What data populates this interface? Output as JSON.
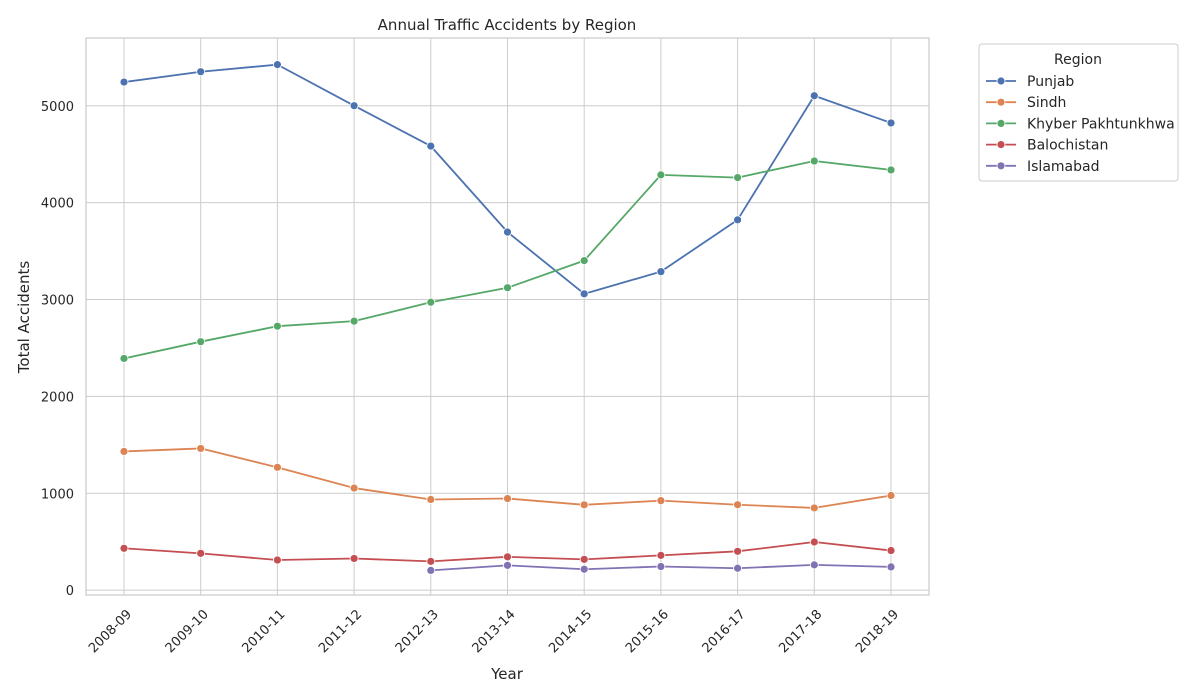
{
  "chart_data": {
    "type": "line",
    "title": "Annual Traffic Accidents by Region",
    "xlabel": "Year",
    "ylabel": "Total Accidents",
    "categories": [
      "2008-09",
      "2009-10",
      "2010-11",
      "2011-12",
      "2012-13",
      "2013-14",
      "2014-15",
      "2015-16",
      "2016-17",
      "2017-18",
      "2018-19"
    ],
    "ylim": [
      -50,
      5700
    ],
    "yticks": [
      0,
      1000,
      2000,
      3000,
      4000,
      5000
    ],
    "grid": true,
    "legend": {
      "title": "Region",
      "placement": "outside-top-right"
    },
    "series": [
      {
        "name": "Punjab",
        "color": "#4c72b0",
        "values": [
          5245,
          5352,
          5425,
          5001,
          4584,
          3697,
          3059,
          3288,
          3823,
          5104,
          4823
        ]
      },
      {
        "name": "Sindh",
        "color": "#dd8452",
        "values": [
          1432,
          1463,
          1268,
          1054,
          936,
          946,
          881,
          924,
          882,
          849,
          977
        ]
      },
      {
        "name": "Khyber Pakhtunkhwa",
        "color": "#55a868",
        "values": [
          2392,
          2565,
          2725,
          2777,
          2972,
          3122,
          3402,
          4287,
          4259,
          4430,
          4338
        ]
      },
      {
        "name": "Balochistan",
        "color": "#c44e52",
        "values": [
          432,
          380,
          311,
          327,
          297,
          344,
          318,
          359,
          401,
          497,
          409
        ]
      },
      {
        "name": "Islamabad",
        "color": "#8172b3",
        "values": [
          null,
          null,
          null,
          null,
          204,
          256,
          216,
          244,
          226,
          261,
          240
        ]
      }
    ]
  }
}
